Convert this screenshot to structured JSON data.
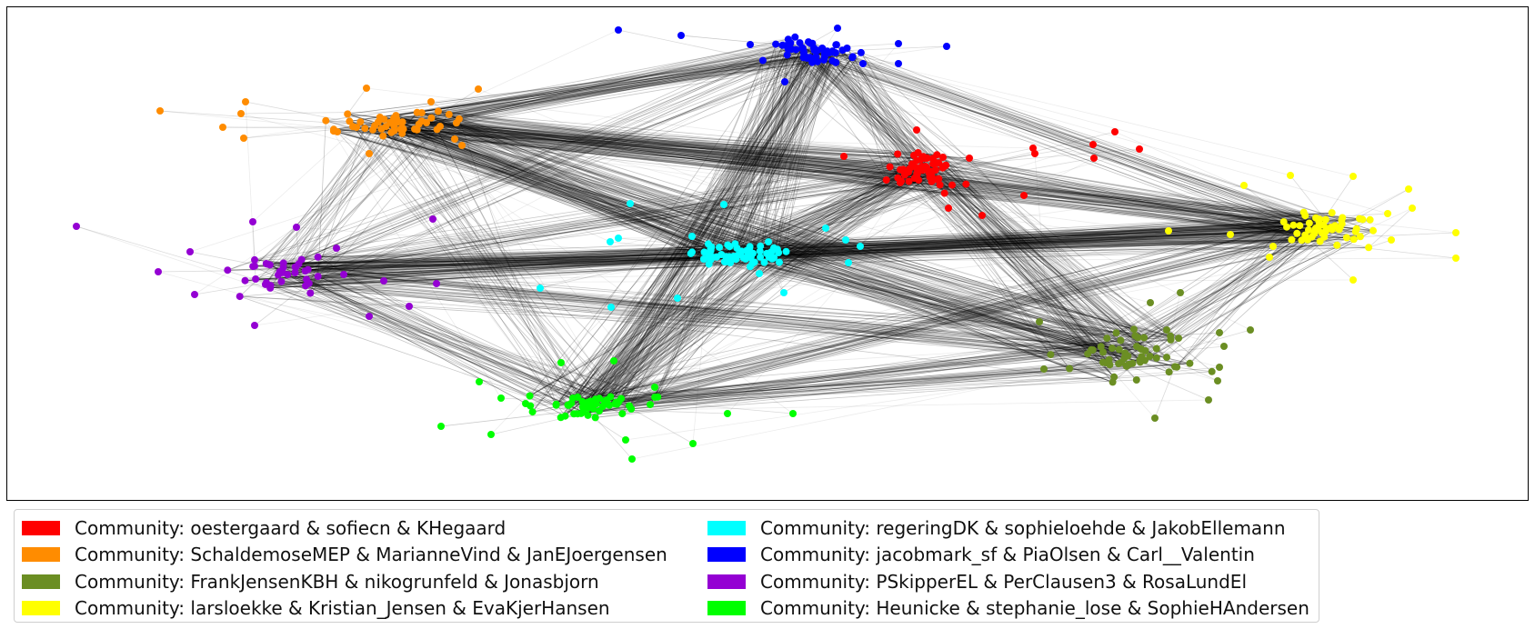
{
  "legend": {
    "items": [
      {
        "label": "Community: oestergaard & sofiecn & KHegaard",
        "color": "#ff0000"
      },
      {
        "label": "Community: SchaldemoseMEP & MarianneVind & JanEJoergensen",
        "color": "#ff8c00"
      },
      {
        "label": "Community: FrankJensenKBH & nikogrunfeld & Jonasbjorn",
        "color": "#6b8e23"
      },
      {
        "label": "Community: larsloekke & Kristian_Jensen & EvaKjerHansen",
        "color": "#ffff00"
      },
      {
        "label": "Community: regeringDK & sophieloehde & JakobEllemann",
        "color": "#00ffff"
      },
      {
        "label": "Community: jacobmark_sf & PiaOlsen & Carl__Valentin",
        "color": "#0000ff"
      },
      {
        "label": "Community: PSkipperEL & PerClausen3 & RosaLundEl",
        "color": "#9400d3"
      },
      {
        "label": "Community: Heunicke & stephanie_lose & SophieHAndersen",
        "color": "#00ff00"
      }
    ]
  },
  "graph": {
    "edge_color": "#000000",
    "communities": [
      "red",
      "orange",
      "olive",
      "yellow",
      "cyan",
      "blue",
      "purple",
      "green"
    ]
  }
}
